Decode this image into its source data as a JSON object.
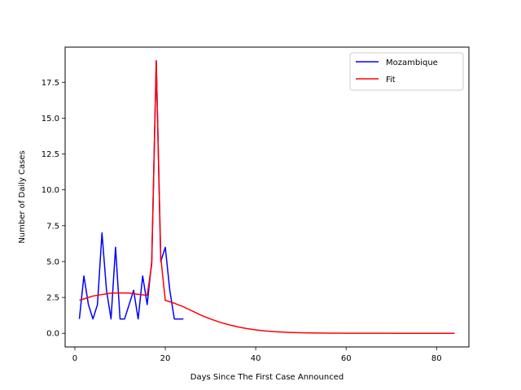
{
  "chart_data": {
    "type": "line",
    "title": "",
    "xlabel": "Days Since The First Case Announced",
    "ylabel": "Number of Daily Cases",
    "xlim": [
      -2.15,
      87.15
    ],
    "ylim": [
      -0.95,
      19.95
    ],
    "xticks": [
      0,
      20,
      40,
      60,
      80
    ],
    "xtick_labels": [
      "0",
      "20",
      "40",
      "60",
      "80"
    ],
    "yticks": [
      0,
      2.5,
      5,
      7.5,
      10,
      12.5,
      15,
      17.5
    ],
    "ytick_labels": [
      "0.0",
      "2.5",
      "5.0",
      "7.5",
      "10.0",
      "12.5",
      "15.0",
      "17.5"
    ],
    "grid": false,
    "legend_position": "top-right",
    "series": [
      {
        "name": "Mozambique",
        "color": "#0000ff",
        "x": [
          1,
          2,
          3,
          4,
          5,
          6,
          7,
          8,
          9,
          10,
          11,
          12,
          13,
          14,
          15,
          16,
          17,
          18,
          19,
          20,
          21,
          22,
          23,
          24
        ],
        "y": [
          1,
          4,
          2,
          1,
          2,
          7,
          3,
          1,
          6,
          1,
          1,
          2,
          3,
          1,
          4,
          2,
          5,
          19,
          5,
          6,
          3,
          1,
          1,
          1
        ]
      },
      {
        "name": "Fit",
        "color": "#ff0000",
        "x": [
          1,
          2,
          4,
          6,
          8,
          10,
          12,
          14,
          15,
          16,
          17,
          18,
          19,
          20,
          22,
          24,
          26,
          28,
          30,
          32,
          34,
          36,
          38,
          40,
          42,
          44,
          46,
          48,
          50,
          52,
          54,
          56,
          58,
          60,
          64,
          68,
          72,
          76,
          80,
          84
        ],
        "y": [
          2.3,
          2.4,
          2.6,
          2.7,
          2.8,
          2.82,
          2.8,
          2.72,
          2.68,
          2.65,
          4.8,
          19,
          5.3,
          2.3,
          2.1,
          1.85,
          1.55,
          1.25,
          1.0,
          0.78,
          0.6,
          0.45,
          0.33,
          0.24,
          0.17,
          0.12,
          0.08,
          0.055,
          0.04,
          0.03,
          0.02,
          0.015,
          0.01,
          0.008,
          0.005,
          0.003,
          0.002,
          0.001,
          0.001,
          0.001
        ]
      }
    ]
  }
}
